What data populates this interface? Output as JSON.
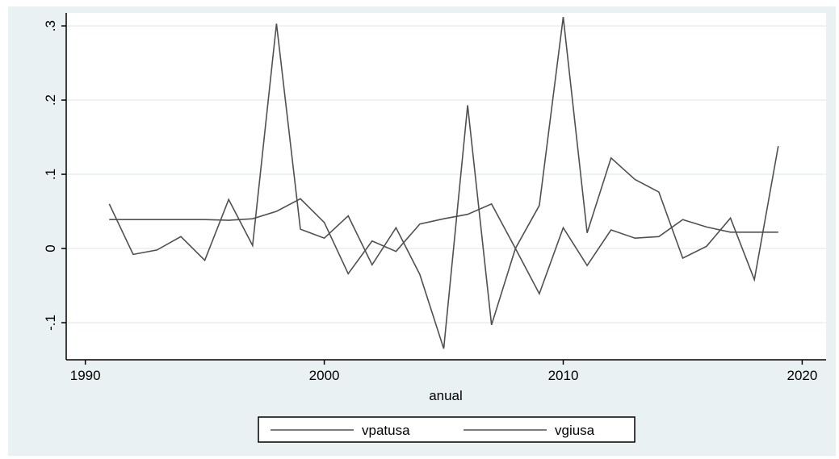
{
  "chart_data": {
    "type": "line",
    "title": "",
    "xlabel": "anual",
    "ylabel": "",
    "xlim": [
      1990,
      2020
    ],
    "ylim": [
      -0.15,
      0.32
    ],
    "xticks": [
      1990,
      2000,
      2010,
      2020
    ],
    "xtick_labels": [
      "1990",
      "2000",
      "2010",
      "2020"
    ],
    "yticks": [
      -0.1,
      0,
      0.1,
      0.2,
      0.3
    ],
    "ytick_labels": [
      "-.1",
      "0",
      ".1",
      ".2",
      ".3"
    ],
    "grid": true,
    "legend_position": "bottom",
    "series": [
      {
        "name": "vpatusa",
        "color": "#505050",
        "x": [
          1991,
          1992,
          1993,
          1994,
          1995,
          1996,
          1997,
          1998,
          1999,
          2000,
          2001,
          2002,
          2003,
          2004,
          2005,
          2006,
          2007,
          2008,
          2009,
          2010,
          2011,
          2012,
          2013,
          2014,
          2015,
          2016,
          2017,
          2018,
          2019
        ],
        "y": [
          0.06,
          -0.008,
          -0.002,
          0.016,
          -0.016,
          0.066,
          0.004,
          0.303,
          0.026,
          0.014,
          0.044,
          -0.022,
          0.028,
          -0.035,
          -0.135,
          0.193,
          -0.103,
          0.0,
          0.058,
          0.312,
          0.021,
          0.122,
          0.093,
          0.076,
          -0.013,
          0.003,
          0.041,
          -0.042,
          0.138
        ]
      },
      {
        "name": "vgiusa",
        "color": "#505050",
        "x": [
          1991,
          1992,
          1993,
          1994,
          1995,
          1996,
          1997,
          1998,
          1999,
          2000,
          2001,
          2002,
          2003,
          2004,
          2005,
          2006,
          2007,
          2008,
          2009,
          2010,
          2011,
          2012,
          2013,
          2014,
          2015,
          2016,
          2017,
          2018,
          2019
        ],
        "y": [
          0.039,
          0.039,
          0.039,
          0.039,
          0.039,
          0.038,
          0.04,
          0.05,
          0.067,
          0.035,
          -0.034,
          0.01,
          -0.004,
          0.033,
          0.04,
          0.046,
          0.06,
          0.0,
          -0.061,
          0.028,
          -0.023,
          0.025,
          0.014,
          0.016,
          0.039,
          0.029,
          0.022,
          0.022,
          0.022
        ]
      }
    ]
  }
}
